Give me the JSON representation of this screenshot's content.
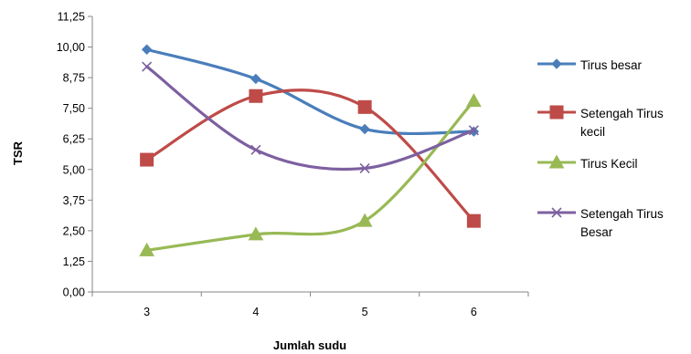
{
  "chart_data": {
    "type": "line",
    "title": "",
    "xlabel": "Jumlah sudu",
    "ylabel": "TSR",
    "categories": [
      "3",
      "4",
      "5",
      "6"
    ],
    "ylim": [
      0,
      11.25
    ],
    "yticks": [
      "0,00",
      "1,25",
      "2,50",
      "3,75",
      "5,00",
      "6,25",
      "7,50",
      "8,75",
      "10,00",
      "11,25"
    ],
    "smooth": true,
    "grid": false,
    "legend_position": "right",
    "series": [
      {
        "name": "Tirus besar",
        "values": [
          9.9,
          8.7,
          6.65,
          6.55
        ],
        "color": "#4a7ebb",
        "marker": "diamond"
      },
      {
        "name": "Setengah Tirus kecil",
        "values": [
          5.4,
          8.0,
          7.55,
          2.9
        ],
        "color": "#be4b48",
        "marker": "square"
      },
      {
        "name": "Tirus Kecil",
        "values": [
          1.7,
          2.35,
          2.9,
          7.8
        ],
        "color": "#98b954",
        "marker": "triangle"
      },
      {
        "name": "Setengah Tirus Besar",
        "values": [
          9.2,
          5.8,
          5.05,
          6.6
        ],
        "color": "#7d60a0",
        "marker": "x"
      }
    ]
  },
  "legend": {
    "items": [
      {
        "lines": [
          "Tirus besar"
        ]
      },
      {
        "lines": [
          "Setengah Tirus",
          "kecil"
        ]
      },
      {
        "lines": [
          "Tirus Kecil"
        ]
      },
      {
        "lines": [
          "Setengah Tirus",
          "Besar"
        ]
      }
    ]
  }
}
